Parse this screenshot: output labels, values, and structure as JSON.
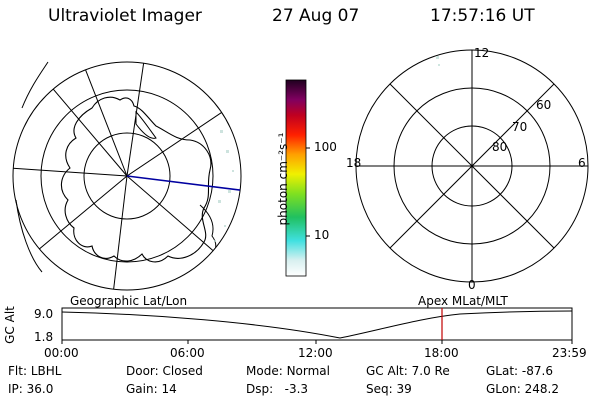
{
  "header": {
    "instrument": "Ultraviolet Imager",
    "date": "27 Aug 07",
    "time": "17:57:16 UT"
  },
  "colorbar": {
    "unit_label": "photon cm⁻²s⁻¹",
    "ticks": [
      "100",
      "10"
    ]
  },
  "mlt_plot": {
    "mlt_labels": {
      "top": "12",
      "left": "18",
      "right": "6",
      "bottom": "0"
    },
    "lat_labels": [
      "60",
      "70",
      "80"
    ]
  },
  "altitude_panel": {
    "left_title": "Geographic Lat/Lon",
    "right_title": "Apex MLat/MLT",
    "y_axis_label": "GC Alt",
    "y_ticks": [
      "9.0",
      "1.8"
    ],
    "x_ticks": [
      "00:00",
      "06:00",
      "12:00",
      "18:00",
      "23:59"
    ],
    "current_time_marker_color": "#c00000"
  },
  "footer": {
    "row1": [
      {
        "label": "Flt:",
        "value": "LBHL"
      },
      {
        "label": "Door:",
        "value": "Closed"
      },
      {
        "label": "Mode:",
        "value": "Normal"
      },
      {
        "label": "GC Alt:",
        "value": "7.0 Re"
      },
      {
        "label": "GLat:",
        "value": "-87.6"
      }
    ],
    "row2": [
      {
        "label": "IP:",
        "value": "36.0"
      },
      {
        "label": "Gain:",
        "value": "14"
      },
      {
        "label": "Dsp:",
        "value": "-3.3"
      },
      {
        "label": "Seq:",
        "value": "39"
      },
      {
        "label": "GLon:",
        "value": "248.2"
      }
    ]
  },
  "colors": {
    "track_line": "#0000a0"
  }
}
